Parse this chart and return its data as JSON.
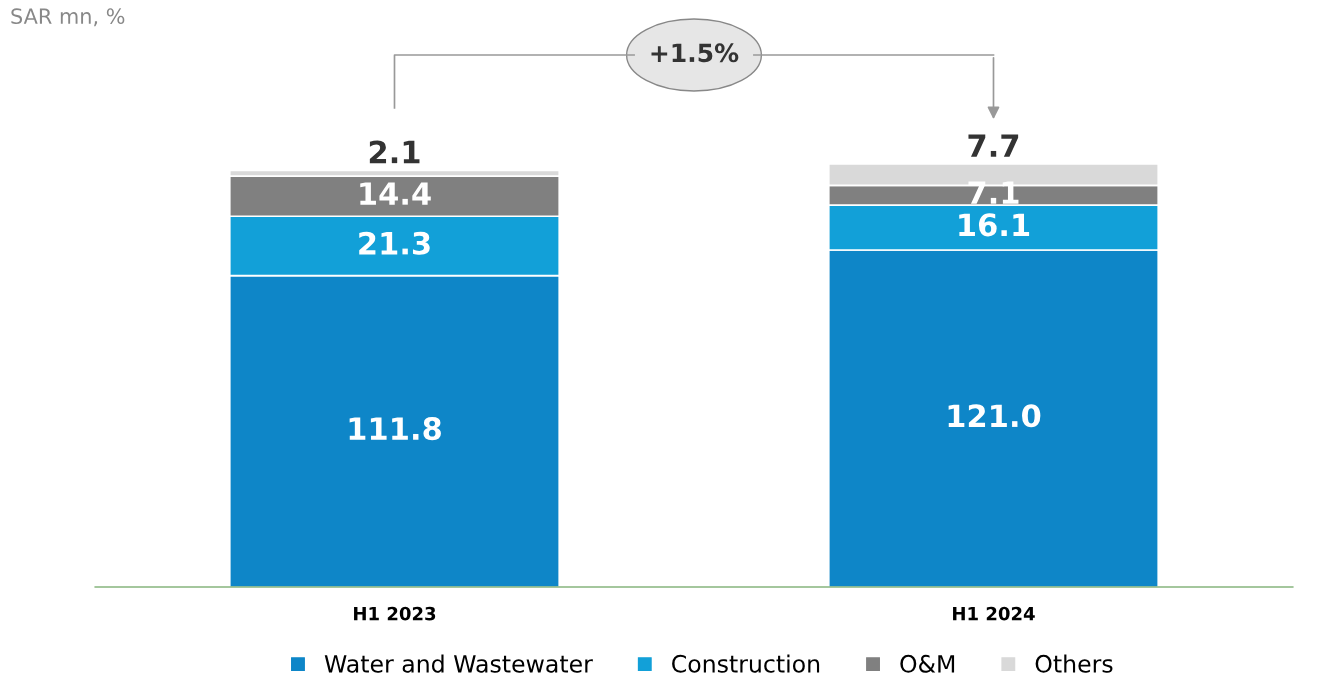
{
  "chart_data": {
    "type": "bar",
    "stacked": true,
    "legend": "bottom",
    "grid": false,
    "tick_labels": "x",
    "categories": [
      "H1 2023",
      "H1 2024"
    ],
    "series": [
      {
        "name": "Water and Wastewater",
        "color": "#0e86c8",
        "values": [
          111.8,
          121.0
        ],
        "value_labels": [
          "111.8",
          "121.0"
        ]
      },
      {
        "name": "Construction",
        "color": "#12a0d8",
        "values": [
          21.3,
          16.1
        ],
        "value_labels": [
          "21.3",
          "16.1"
        ]
      },
      {
        "name": "O&M",
        "color": "#808080",
        "values": [
          14.4,
          7.1
        ],
        "value_labels": [
          "14.4",
          "7.1"
        ]
      },
      {
        "name": "Others",
        "color": "#d9d9d9",
        "values": [
          2.1,
          7.7
        ],
        "value_labels": [
          "2.1",
          "7.7"
        ]
      }
    ],
    "annotations": [
      "SAR mn, %",
      "+1.5%"
    ]
  }
}
